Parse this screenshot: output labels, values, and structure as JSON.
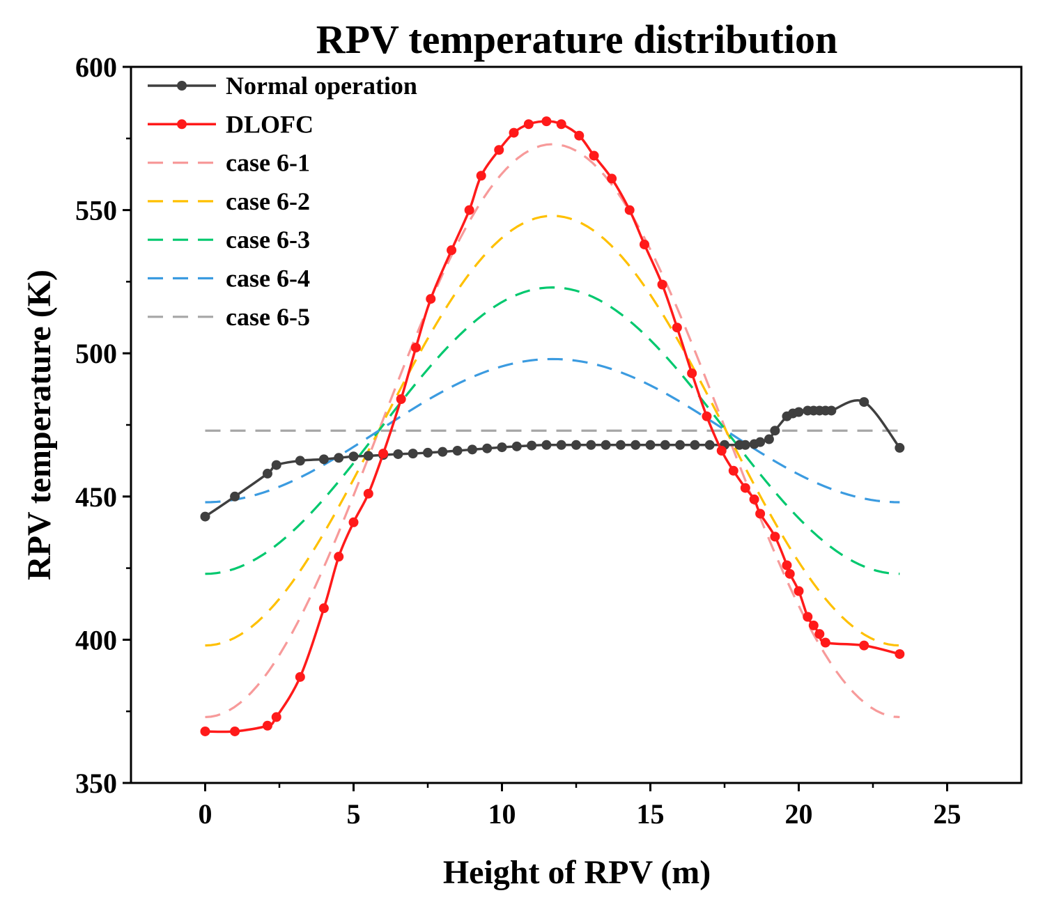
{
  "chart_data": {
    "type": "line",
    "title": "RPV temperature distribution",
    "xlabel": "Height of RPV (m)",
    "ylabel": "RPV temperature (K)",
    "xlim": [
      -2.5,
      27.5
    ],
    "ylim": [
      350,
      600
    ],
    "x_ticks": [
      0,
      5,
      10,
      15,
      20,
      25
    ],
    "y_ticks": [
      350,
      400,
      450,
      500,
      550,
      600
    ],
    "grid": false,
    "legend": "top-left",
    "series": [
      {
        "name": "Normal operation",
        "color": "#3f3f3f",
        "style": "solid-markers",
        "x": [
          0,
          1,
          2.1,
          2.4,
          3.2,
          4,
          4.5,
          5,
          5.5,
          6,
          6.5,
          7,
          7.5,
          8,
          8.5,
          9,
          9.5,
          10,
          10.5,
          11,
          11.5,
          12,
          12.5,
          13,
          13.5,
          14,
          14.5,
          15,
          15.5,
          16,
          16.5,
          17,
          17.5,
          18,
          18.2,
          18.5,
          18.7,
          19,
          19.2,
          19.6,
          19.8,
          20,
          20.3,
          20.5,
          20.7,
          20.9,
          21.1,
          22.2,
          23.4
        ],
        "y": [
          443,
          450,
          458,
          461,
          462.5,
          463,
          463.5,
          464,
          464.2,
          464.5,
          464.8,
          465,
          465.3,
          465.6,
          466,
          466.4,
          466.8,
          467.2,
          467.5,
          467.8,
          468,
          468,
          468,
          468,
          468,
          468,
          468,
          468,
          468,
          468,
          468,
          468,
          468,
          468,
          468,
          468.3,
          469,
          470,
          473,
          478,
          479,
          479.5,
          480,
          480,
          480,
          480,
          480,
          483,
          467
        ]
      },
      {
        "name": "DLOFC",
        "color": "#ff1a1a",
        "style": "solid-markers",
        "x": [
          0,
          1,
          2.1,
          2.4,
          3.2,
          4,
          4.5,
          5,
          5.5,
          6,
          6.6,
          7.1,
          7.6,
          8.3,
          8.9,
          9.3,
          9.9,
          10.4,
          10.9,
          11.5,
          12,
          12.6,
          13.1,
          13.7,
          14.3,
          14.8,
          15.4,
          15.9,
          16.4,
          16.9,
          17.4,
          17.8,
          18.2,
          18.5,
          18.7,
          19.2,
          19.6,
          19.7,
          20,
          20.3,
          20.5,
          20.7,
          20.9,
          22.2,
          23.4
        ],
        "y": [
          368,
          368,
          370,
          373,
          387,
          411,
          429,
          441,
          451,
          465,
          484,
          502,
          519,
          536,
          550,
          562,
          571,
          577,
          580,
          581,
          580,
          576,
          569,
          561,
          550,
          538,
          524,
          509,
          493,
          478,
          466,
          459,
          453,
          449,
          444,
          436,
          426,
          423,
          417,
          408,
          405,
          402,
          399,
          398,
          395
        ]
      },
      {
        "name": "case 6-1",
        "color": "#f79a9a",
        "style": "dashed",
        "peak": 573,
        "base": 373,
        "x_start": 0,
        "x_end": 23.4
      },
      {
        "name": "case 6-2",
        "color": "#ffc000",
        "style": "dashed",
        "peak": 548,
        "base": 398,
        "x_start": 0,
        "x_end": 23.4
      },
      {
        "name": "case 6-3",
        "color": "#00c86e",
        "style": "dashed",
        "peak": 523,
        "base": 423,
        "x_start": 0,
        "x_end": 23.4
      },
      {
        "name": "case 6-4",
        "color": "#3b9be0",
        "style": "dashed",
        "peak": 498,
        "base": 448,
        "x_start": 0,
        "x_end": 23.4
      },
      {
        "name": "case 6-5",
        "color": "#a6a6a6",
        "style": "dashed",
        "peak": 473,
        "base": 473,
        "x_start": 0,
        "x_end": 23.4
      }
    ]
  }
}
